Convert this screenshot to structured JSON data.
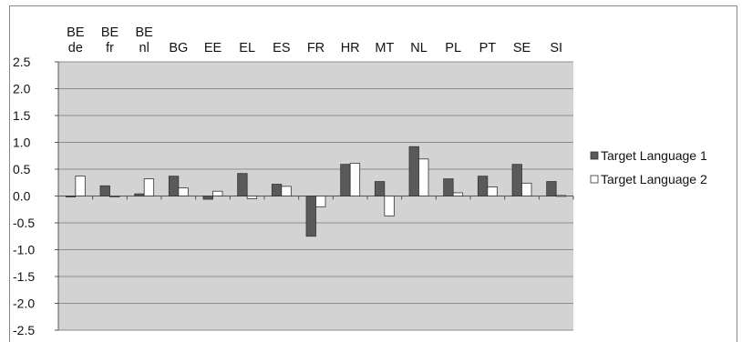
{
  "chart_data": {
    "type": "bar",
    "categories": [
      [
        "BE",
        "de"
      ],
      [
        "BE",
        "fr"
      ],
      [
        "BE",
        "nl"
      ],
      [
        "BG"
      ],
      [
        "EE"
      ],
      [
        "EL"
      ],
      [
        "ES"
      ],
      [
        "FR"
      ],
      [
        "HR"
      ],
      [
        "MT"
      ],
      [
        "NL"
      ],
      [
        "PL"
      ],
      [
        "PT"
      ],
      [
        "SE"
      ],
      [
        "SI"
      ]
    ],
    "series": [
      {
        "name": "Target Language 1",
        "color": "#5a5a5a",
        "values": [
          -0.01,
          0.19,
          0.04,
          0.37,
          -0.06,
          0.42,
          0.22,
          -0.75,
          0.59,
          0.27,
          0.92,
          0.32,
          0.37,
          0.59,
          0.27
        ]
      },
      {
        "name": "Target Language 2",
        "color": "#ffffff",
        "values": [
          0.37,
          -0.01,
          0.32,
          0.15,
          0.09,
          -0.05,
          0.18,
          -0.2,
          0.61,
          -0.37,
          0.69,
          0.06,
          0.17,
          0.24,
          0.01
        ]
      }
    ],
    "yticks": [
      "2.5",
      "2.0",
      "1.5",
      "1.0",
      "0.5",
      "0.0",
      "-0.5",
      "-1.0",
      "-1.5",
      "-2.0",
      "-2.5"
    ],
    "ylim": [
      -2.5,
      2.5
    ],
    "grid": true,
    "legend": "right",
    "plot_background": "#d3d3d3",
    "title": "",
    "xlabel": "",
    "ylabel": ""
  }
}
